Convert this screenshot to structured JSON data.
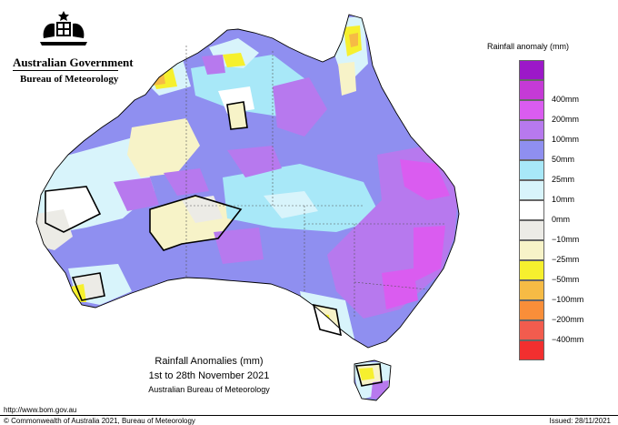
{
  "header": {
    "government": "Australian Government",
    "bureau": "Bureau of Meteorology"
  },
  "legend": {
    "title": "Rainfall anomaly (mm)",
    "classes": [
      {
        "label": "",
        "color": "#9c18c8"
      },
      {
        "label": "400mm",
        "color": "#c53ad6"
      },
      {
        "label": "200mm",
        "color": "#da5cf0"
      },
      {
        "label": "100mm",
        "color": "#b779ee"
      },
      {
        "label": "50mm",
        "color": "#8f8ff0"
      },
      {
        "label": "25mm",
        "color": "#a8e8f8"
      },
      {
        "label": "10mm",
        "color": "#d8f4fb"
      },
      {
        "label": "0mm",
        "color": "#ffffff"
      },
      {
        "label": "−10mm",
        "color": "#ecebe6"
      },
      {
        "label": "−25mm",
        "color": "#f7f3c8"
      },
      {
        "label": "−50mm",
        "color": "#f6f02e"
      },
      {
        "label": "−100mm",
        "color": "#f6bb45"
      },
      {
        "label": "−200mm",
        "color": "#f98e39"
      },
      {
        "label": "−400mm",
        "color": "#f25c4e"
      },
      {
        "label": "",
        "color": "#f22f2f"
      }
    ]
  },
  "caption": {
    "line1": "Rainfall Anomalies (mm)",
    "line2": "1st to 28th November 2021",
    "line3": "Australian Bureau of Meteorology"
  },
  "footer": {
    "url": "http://www.bom.gov.au",
    "copyright": "© Commonwealth of Australia 2021, Bureau of Meteorology",
    "issued": "Issued: 28/11/2021"
  }
}
